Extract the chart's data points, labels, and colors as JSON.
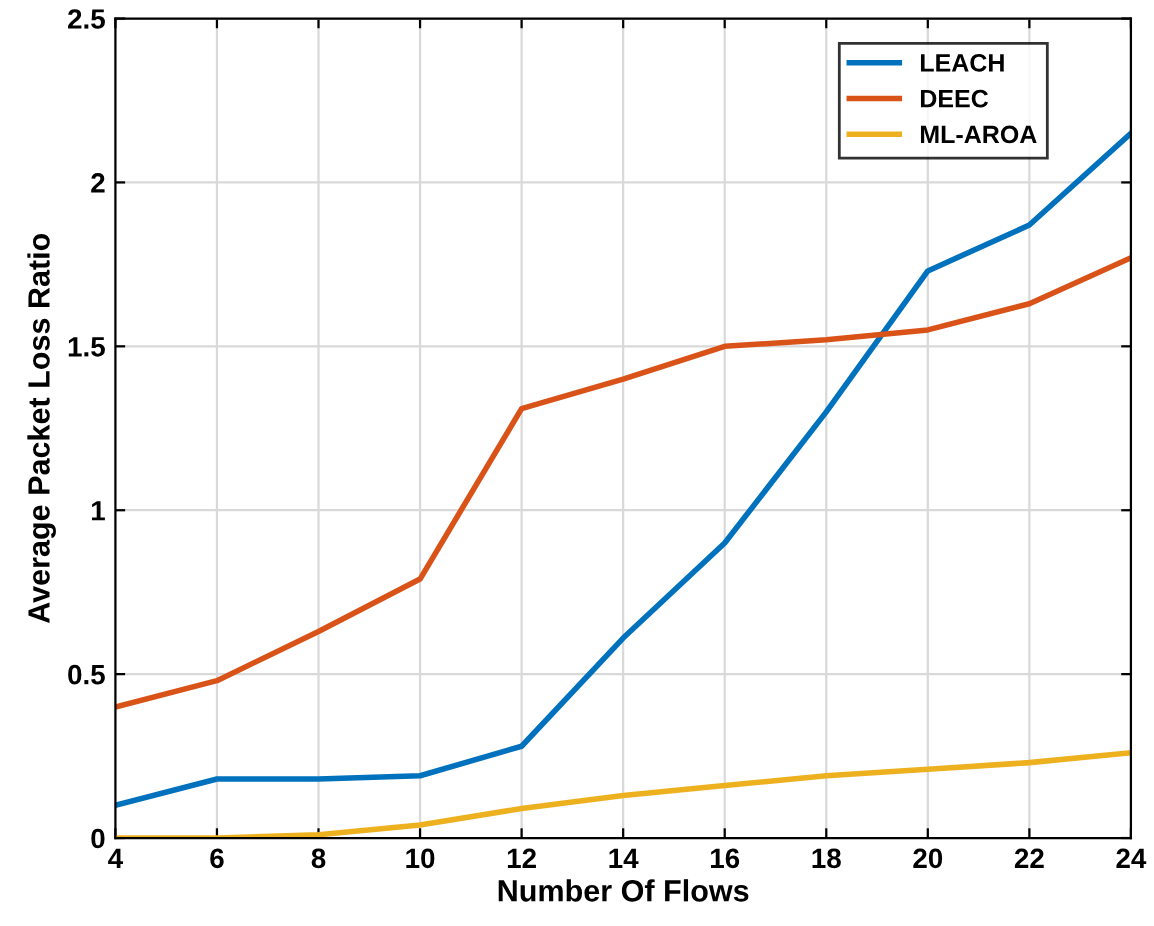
{
  "chart_data": {
    "type": "line",
    "xlabel": "Number Of Flows",
    "ylabel": "Average Packet Loss Ratio",
    "x": [
      4,
      6,
      8,
      10,
      12,
      14,
      16,
      18,
      20,
      22,
      24
    ],
    "series": [
      {
        "name": "LEACH",
        "color": "#0072bd",
        "values": [
          0.1,
          0.18,
          0.18,
          0.19,
          0.28,
          0.61,
          0.9,
          1.3,
          1.73,
          1.87,
          2.15
        ]
      },
      {
        "name": "DEEC",
        "color": "#d95319",
        "values": [
          0.4,
          0.48,
          0.63,
          0.79,
          1.31,
          1.4,
          1.5,
          1.52,
          1.55,
          1.63,
          1.77
        ]
      },
      {
        "name": "ML-AROA",
        "color": "#edb120",
        "values": [
          0,
          0,
          0.01,
          0.04,
          0.09,
          0.13,
          0.16,
          0.19,
          0.21,
          0.23,
          0.26
        ]
      }
    ],
    "xlim": [
      4,
      24
    ],
    "xticks": [
      4,
      6,
      8,
      10,
      12,
      14,
      16,
      18,
      20,
      22,
      24
    ],
    "ylim": [
      0,
      2.5
    ],
    "yticks": [
      0,
      0.5,
      1,
      1.5,
      2,
      2.5
    ],
    "grid": true,
    "legend": "top right",
    "marker": "none",
    "line_style": "solid"
  }
}
